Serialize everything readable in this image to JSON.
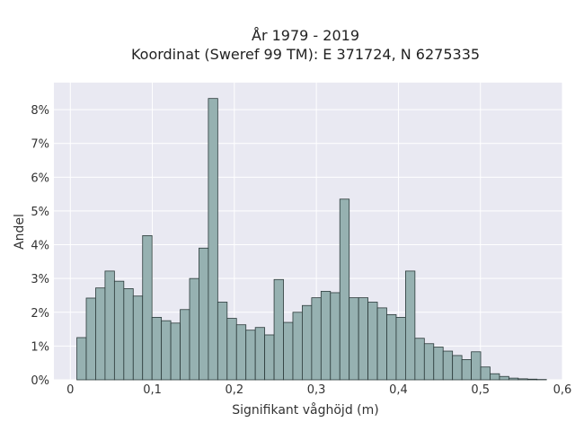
{
  "chart_data": {
    "type": "bar",
    "title_line1": "År 1979 - 2019",
    "title_line2": "Koordinat (Sweref 99 TM): E 371724, N 6275335",
    "xlabel": "Signifikant våghöjd (m)",
    "ylabel": "Andel",
    "xlim": [
      -0.02,
      0.6
    ],
    "ylim": [
      0,
      8.8
    ],
    "x_ticks": [
      0,
      0.1,
      0.2,
      0.3,
      0.4,
      0.5,
      0.6
    ],
    "x_tick_labels": [
      "0",
      "0,1",
      "0,2",
      "0,3",
      "0,4",
      "0,5",
      "0,6"
    ],
    "y_ticks": [
      0,
      1,
      2,
      3,
      4,
      5,
      6,
      7,
      8
    ],
    "y_tick_labels": [
      "0%",
      "1%",
      "2%",
      "3%",
      "4%",
      "5%",
      "6%",
      "7%",
      "8%"
    ],
    "bin_start": 0.008,
    "bin_width": 0.01145,
    "values": [
      1.25,
      2.42,
      2.72,
      3.22,
      2.92,
      2.7,
      2.48,
      4.27,
      1.85,
      1.75,
      1.68,
      2.08,
      3.0,
      3.9,
      8.33,
      2.3,
      1.82,
      1.63,
      1.47,
      1.55,
      1.33,
      2.97,
      1.7,
      2.0,
      2.2,
      2.43,
      2.62,
      2.58,
      5.35,
      2.43,
      2.43,
      2.3,
      2.13,
      1.93,
      1.85,
      3.22,
      1.23,
      1.07,
      0.97,
      0.85,
      0.72,
      0.6,
      0.83,
      0.38,
      0.18,
      0.1,
      0.05,
      0.03,
      0.02,
      0.01
    ],
    "bar_color": "#96b1b1",
    "bar_edge_color": "#2b3a3a",
    "background_color": "#e9e9f2",
    "grid": true
  }
}
